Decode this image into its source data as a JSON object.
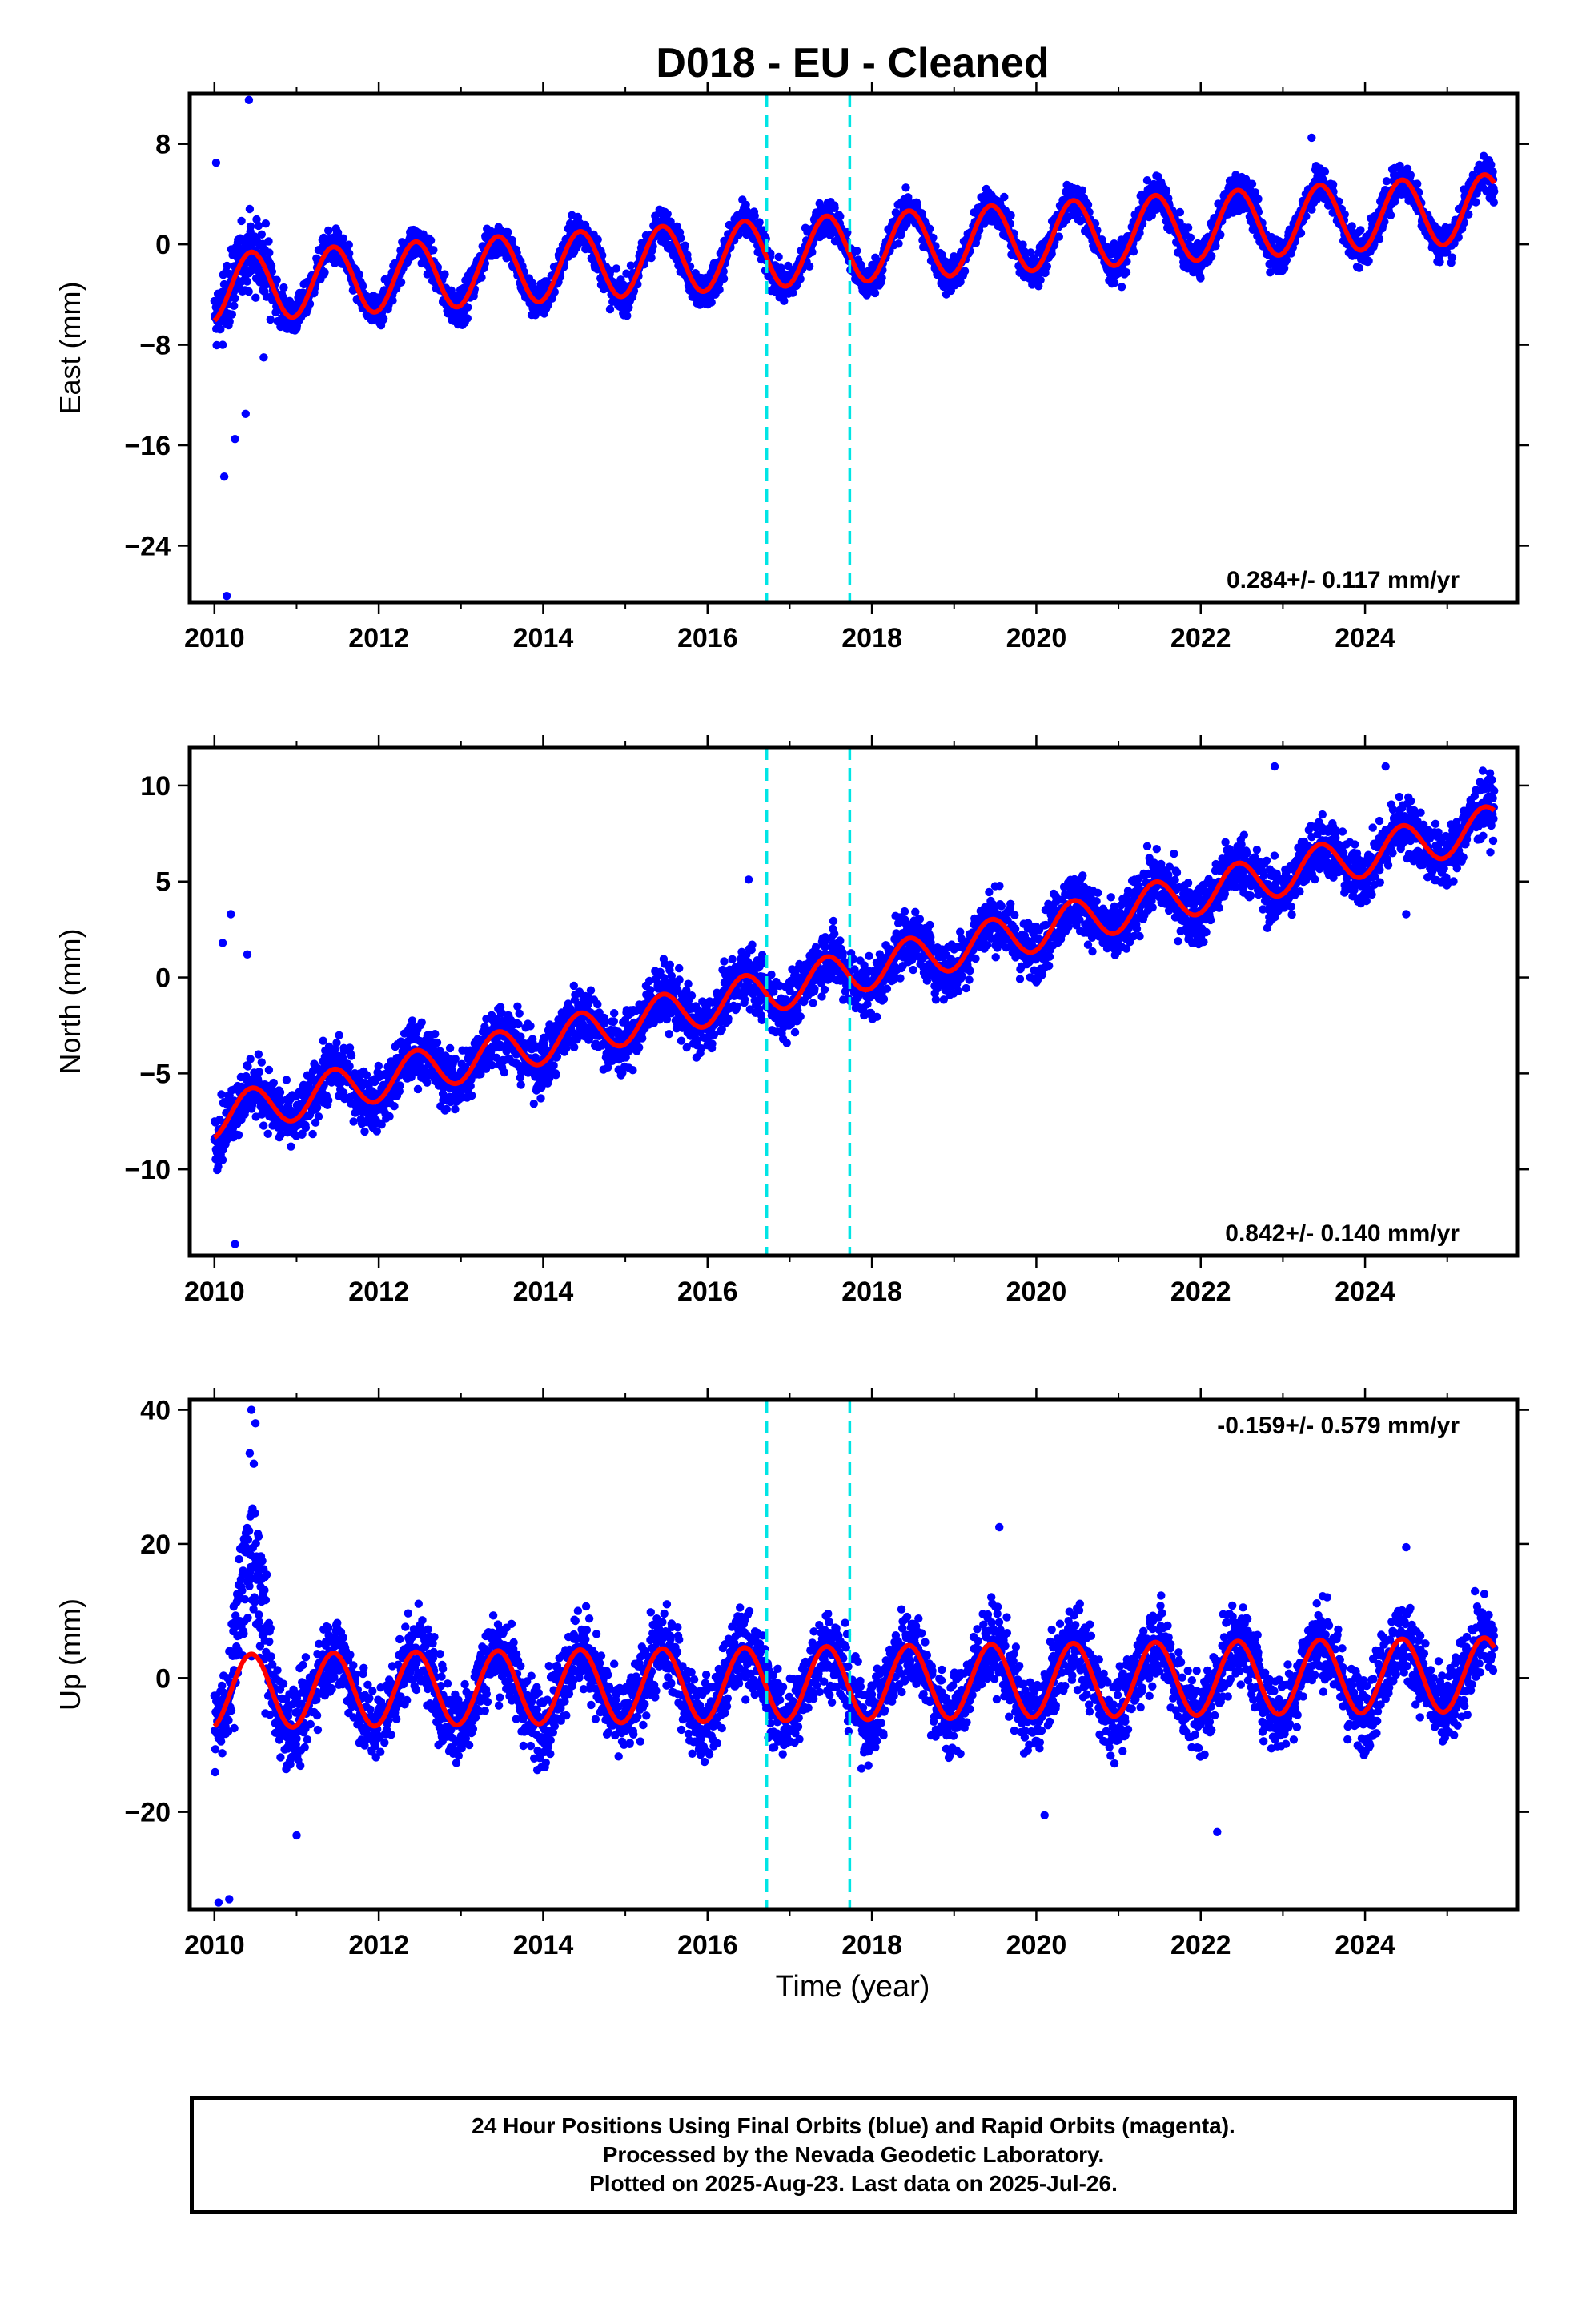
{
  "title": "D018  - EU - Cleaned",
  "xlabel": "Time (year)",
  "footer": {
    "line1": "24 Hour Positions Using Final Orbits (blue) and Rapid Orbits (magenta).",
    "line2": "Processed by the Nevada Geodetic Laboratory.",
    "line3": "Plotted on 2025-Aug-23. Last data on 2025-Jul-26."
  },
  "colors": {
    "final_orbit_points": "#0000ff",
    "model_fit": "#ff0000",
    "event_lines": "#00e5e5",
    "frame": "#000000"
  },
  "chart_data": [
    {
      "type": "scatter",
      "component": "East",
      "ylabel": "East (mm)",
      "xlim": [
        2009.7,
        2025.85
      ],
      "ylim": [
        -28.5,
        12
      ],
      "xticks": [
        2010,
        2012,
        2014,
        2016,
        2018,
        2020,
        2022,
        2024
      ],
      "yticks": [
        8,
        0,
        -8,
        -16,
        -24
      ],
      "rate_label": "0.284+/- 0.117 mm/yr",
      "rate_label_position": "bottom-right",
      "event_lines_x": [
        2016.72,
        2017.73
      ],
      "series": [
        {
          "style": "points",
          "color": "#0000ff",
          "x_range": [
            2010.0,
            2025.57
          ],
          "seasonal_amplitude": 2.7,
          "noise": 1.2,
          "outliers": [
            [
              2010.02,
              6.5
            ],
            [
              2010.1,
              -8.0
            ],
            [
              2010.12,
              -18.5
            ],
            [
              2010.15,
              -28.0
            ],
            [
              2010.25,
              -15.5
            ],
            [
              2010.38,
              -13.5
            ],
            [
              2010.42,
              11.5
            ],
            [
              2010.6,
              -9.0
            ],
            [
              2023.35,
              8.5
            ]
          ]
        },
        {
          "style": "line",
          "color": "#ff0000",
          "trend": [
            [
              2010.0,
              -3.5
            ],
            [
              2025.57,
              2.9
            ]
          ],
          "seasonal_amplitude": 2.7
        }
      ]
    },
    {
      "type": "scatter",
      "component": "North",
      "ylabel": "North (mm)",
      "xlim": [
        2009.7,
        2025.85
      ],
      "ylim": [
        -14.5,
        12
      ],
      "xticks": [
        2010,
        2012,
        2014,
        2016,
        2018,
        2020,
        2022,
        2024
      ],
      "yticks": [
        10,
        5,
        0,
        -5,
        -10
      ],
      "rate_label": "0.842+/- 0.140 mm/yr",
      "rate_label_position": "bottom-right",
      "event_lines_x": [
        2016.72,
        2017.73
      ],
      "series": [
        {
          "style": "points",
          "color": "#0000ff",
          "x_range": [
            2010.0,
            2025.57
          ],
          "seasonal_amplitude": 1.1,
          "noise": 1.3,
          "outliers": [
            [
              2010.1,
              1.8
            ],
            [
              2010.2,
              3.3
            ],
            [
              2010.25,
              -13.9
            ],
            [
              2010.4,
              1.2
            ],
            [
              2016.5,
              5.1
            ],
            [
              2022.9,
              11.0
            ],
            [
              2024.25,
              11.0
            ],
            [
              2024.5,
              3.3
            ]
          ]
        },
        {
          "style": "line",
          "color": "#ff0000",
          "trend": [
            [
              2010.0,
              -7.3
            ],
            [
              2025.57,
              7.9
            ]
          ],
          "seasonal_amplitude": 1.1
        }
      ]
    },
    {
      "type": "scatter",
      "component": "Up",
      "ylabel": "Up (mm)",
      "xlim": [
        2009.7,
        2025.85
      ],
      "ylim": [
        -34.5,
        41.5
      ],
      "xticks": [
        2010,
        2012,
        2014,
        2016,
        2018,
        2020,
        2022,
        2024
      ],
      "yticks": [
        40,
        20,
        0,
        -20
      ],
      "rate_label": "-0.159+/- 0.579 mm/yr",
      "rate_label_position": "top-right",
      "event_lines_x": [
        2016.72,
        2017.73
      ],
      "series": [
        {
          "style": "points",
          "color": "#0000ff",
          "x_range": [
            2010.0,
            2025.57
          ],
          "seasonal_amplitude": 5.5,
          "noise": 5.0,
          "outliers": [
            [
              2010.05,
              -33.5
            ],
            [
              2010.18,
              -33.0
            ],
            [
              2010.45,
              40.0
            ],
            [
              2010.5,
              38.0
            ],
            [
              2011.0,
              -23.5
            ],
            [
              2019.55,
              22.5
            ],
            [
              2020.1,
              -20.5
            ],
            [
              2022.2,
              -23.0
            ],
            [
              2024.5,
              19.5
            ]
          ]
        },
        {
          "style": "line",
          "color": "#ff0000",
          "trend": [
            [
              2010.0,
              -2.0
            ],
            [
              2025.57,
              0.5
            ]
          ],
          "seasonal_amplitude": 5.5
        }
      ]
    }
  ]
}
